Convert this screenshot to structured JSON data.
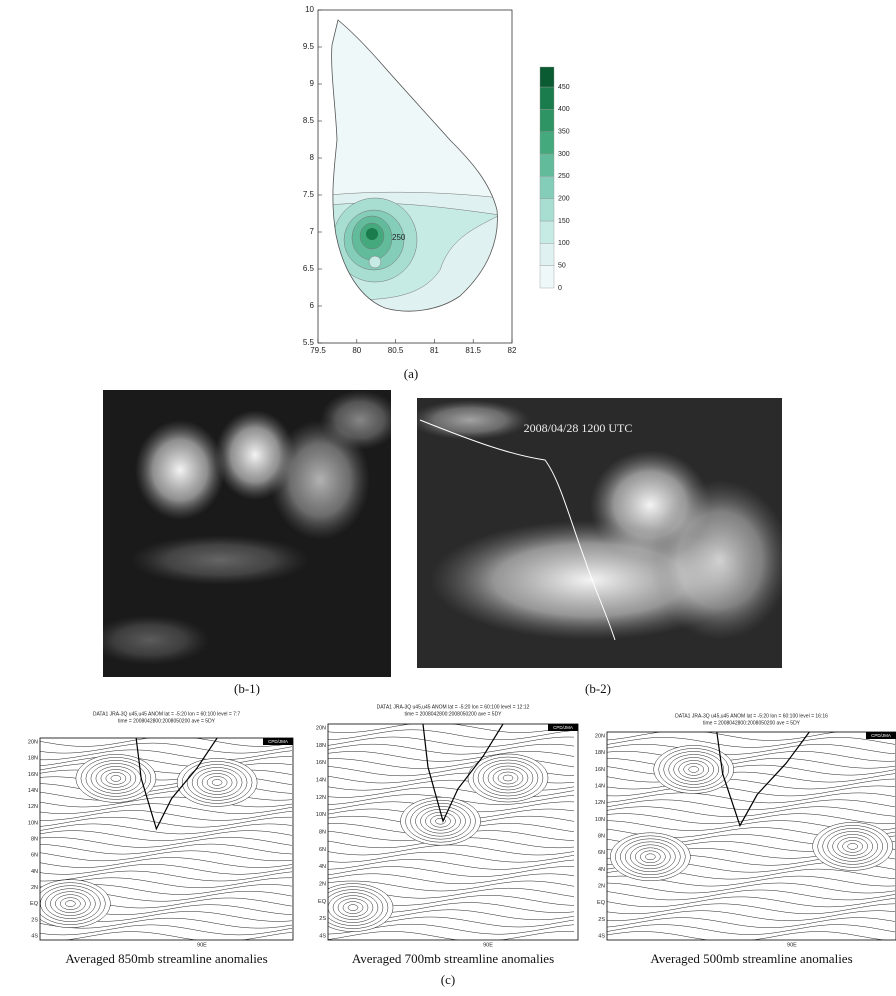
{
  "panel_a": {
    "y_ticks": [
      "10",
      "9.5",
      "9",
      "8.5",
      "8",
      "7.5",
      "7",
      "6.5",
      "6",
      "5.5"
    ],
    "x_ticks": [
      "79.5",
      "80",
      "80.5",
      "81",
      "81.5",
      "82"
    ],
    "colorbar_ticks": [
      "0",
      "50",
      "100",
      "150",
      "200",
      "250",
      "300",
      "350",
      "400",
      "450"
    ],
    "contour_label": "250",
    "caption": "(a)"
  },
  "panel_b": {
    "images": [
      {
        "caption": "(b-1)"
      },
      {
        "timestamp": "2008/04/28 1200 UTC",
        "caption": "(b-2)"
      }
    ]
  },
  "panel_c": {
    "lat_ticks": [
      "20N",
      "18N",
      "16N",
      "14N",
      "12N",
      "10N",
      "8N",
      "6N",
      "4N",
      "2N",
      "EQ",
      "2S",
      "4S"
    ],
    "lon_tick": "90E",
    "source": "CPD/JMA",
    "caption": "(c)",
    "plots": [
      {
        "header": [
          "DATA1   JRA-3Q   u45,u45   ANOM   lat = -5:20   lon = 60:100   level = 7:7",
          "time = 2008042800:2008050200   ave = 5DY"
        ],
        "caption": "Averaged 850mb streamline anomalies"
      },
      {
        "header": [
          "DATA1   JRA-3Q   u45,u45   ANOM   lat = -5:20   lon = 60:100   level = 12:12",
          "time = 2008042800:2008050200   ave = 5DY"
        ],
        "caption": "Averaged 700mb streamline anomalies"
      },
      {
        "header": [
          "DATA1   JRA-3Q   u45,u45   ANOM   lat = -5:20   lon = 60:100   level = 16:16",
          "time = 2008042800:2008050200   ave = 5DY"
        ],
        "caption": "Averaged 500mb streamline anomalies"
      }
    ]
  }
}
